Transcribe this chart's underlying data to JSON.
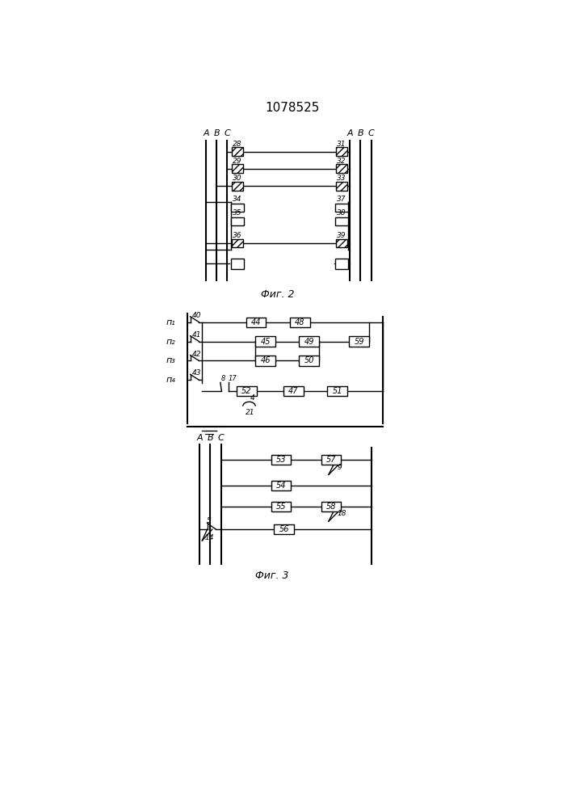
{
  "title": "1078525",
  "fig2_caption": "Фиг. 2",
  "fig3_caption": "Фиг. 3",
  "bg_color": "#ffffff",
  "line_color": "#000000"
}
